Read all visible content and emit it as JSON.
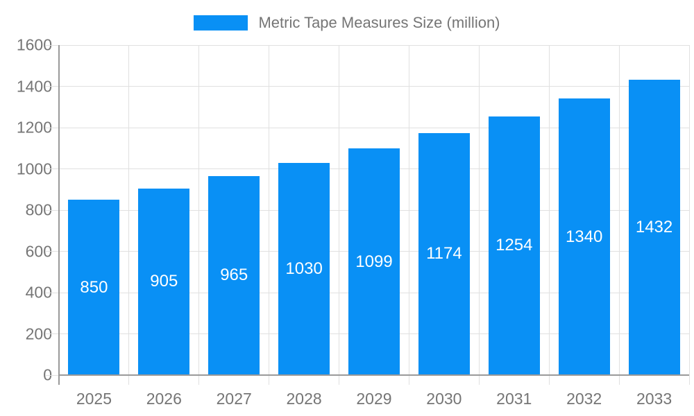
{
  "legend": {
    "label": "Metric Tape Measures Size (million)"
  },
  "chart_data": {
    "type": "bar",
    "title": "",
    "categories": [
      "2025",
      "2026",
      "2027",
      "2028",
      "2029",
      "2030",
      "2031",
      "2032",
      "2033"
    ],
    "values": [
      850,
      905,
      965,
      1030,
      1099,
      1174,
      1254,
      1340,
      1432
    ],
    "series_name": "Metric Tape Measures Size (million)",
    "xlabel": "",
    "ylabel": "",
    "ylim": [
      0,
      1600
    ],
    "ytick_step": 200,
    "grid": true,
    "legend_position": "top-center",
    "value_labels": "inside-center",
    "colors": {
      "bar": "#0990f5",
      "value_label": "#ffffff",
      "axis_text": "#757575",
      "gridline": "#e0e0e0",
      "axis_line": "#999999",
      "background": "#ffffff"
    }
  }
}
